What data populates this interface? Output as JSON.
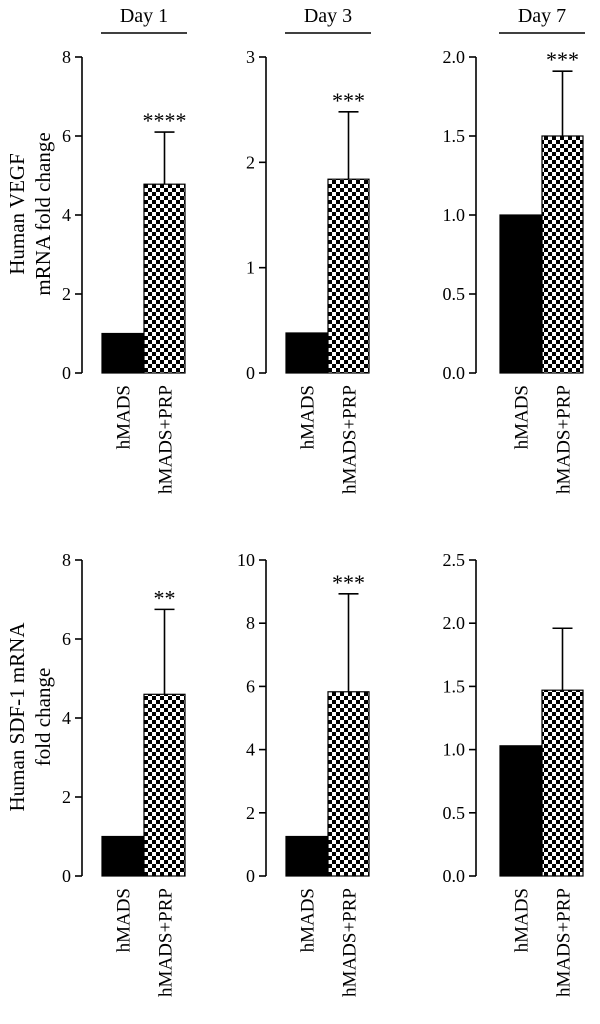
{
  "colors": {
    "control": "#000000",
    "treated_pattern": "checkerboard",
    "axis": "#000000",
    "background": "#ffffff"
  },
  "row_labels": [
    [
      "Human VEGF",
      "mRNA fold change"
    ],
    [
      "Human SDF-1 mRNA",
      "fold change"
    ]
  ],
  "chart_data": [
    {
      "type": "bar",
      "row": 0,
      "col": 0,
      "day_label": "Day 1",
      "categories": [
        "hMADS",
        "hMADS+PRP"
      ],
      "values": [
        1.0,
        4.78
      ],
      "error_upper": [
        null,
        6.1
      ],
      "significance": [
        null,
        "****"
      ],
      "ylim": [
        0,
        8
      ],
      "yticks": [
        "0",
        "2",
        "4",
        "6",
        "8"
      ]
    },
    {
      "type": "bar",
      "row": 0,
      "col": 1,
      "day_label": "Day 3",
      "categories": [
        "hMADS",
        "hMADS+PRP"
      ],
      "values": [
        0.38,
        1.84
      ],
      "error_upper": [
        null,
        2.48
      ],
      "significance": [
        null,
        "***"
      ],
      "ylim": [
        0,
        3
      ],
      "yticks": [
        "0",
        "1",
        "2",
        "3"
      ]
    },
    {
      "type": "bar",
      "row": 0,
      "col": 2,
      "day_label": "Day 7",
      "categories": [
        "hMADS",
        "hMADS+PRP"
      ],
      "values": [
        1.0,
        1.5
      ],
      "error_upper": [
        null,
        1.91
      ],
      "significance": [
        null,
        "***"
      ],
      "ylim": [
        0,
        2
      ],
      "yticks": [
        "0.0",
        "0.5",
        "1.0",
        "1.5",
        "2.0"
      ]
    },
    {
      "type": "bar",
      "row": 1,
      "col": 0,
      "categories": [
        "hMADS",
        "hMADS+PRP"
      ],
      "values": [
        1.0,
        4.6
      ],
      "error_upper": [
        null,
        6.75
      ],
      "significance": [
        null,
        "**"
      ],
      "ylim": [
        0,
        8
      ],
      "yticks": [
        "0",
        "2",
        "4",
        "6",
        "8"
      ]
    },
    {
      "type": "bar",
      "row": 1,
      "col": 1,
      "categories": [
        "hMADS",
        "hMADS+PRP"
      ],
      "values": [
        1.25,
        5.83
      ],
      "error_upper": [
        null,
        8.93
      ],
      "significance": [
        null,
        "***"
      ],
      "ylim": [
        0,
        10
      ],
      "yticks": [
        "0",
        "2",
        "4",
        "6",
        "8",
        "10"
      ]
    },
    {
      "type": "bar",
      "row": 1,
      "col": 2,
      "categories": [
        "hMADS",
        "hMADS+PRP"
      ],
      "values": [
        1.03,
        1.47
      ],
      "error_upper": [
        null,
        1.96
      ],
      "significance": [
        null,
        ""
      ],
      "ylim": [
        0,
        2.5
      ],
      "yticks": [
        "0.0",
        "0.5",
        "1.0",
        "1.5",
        "2.0",
        "2.5"
      ]
    }
  ]
}
